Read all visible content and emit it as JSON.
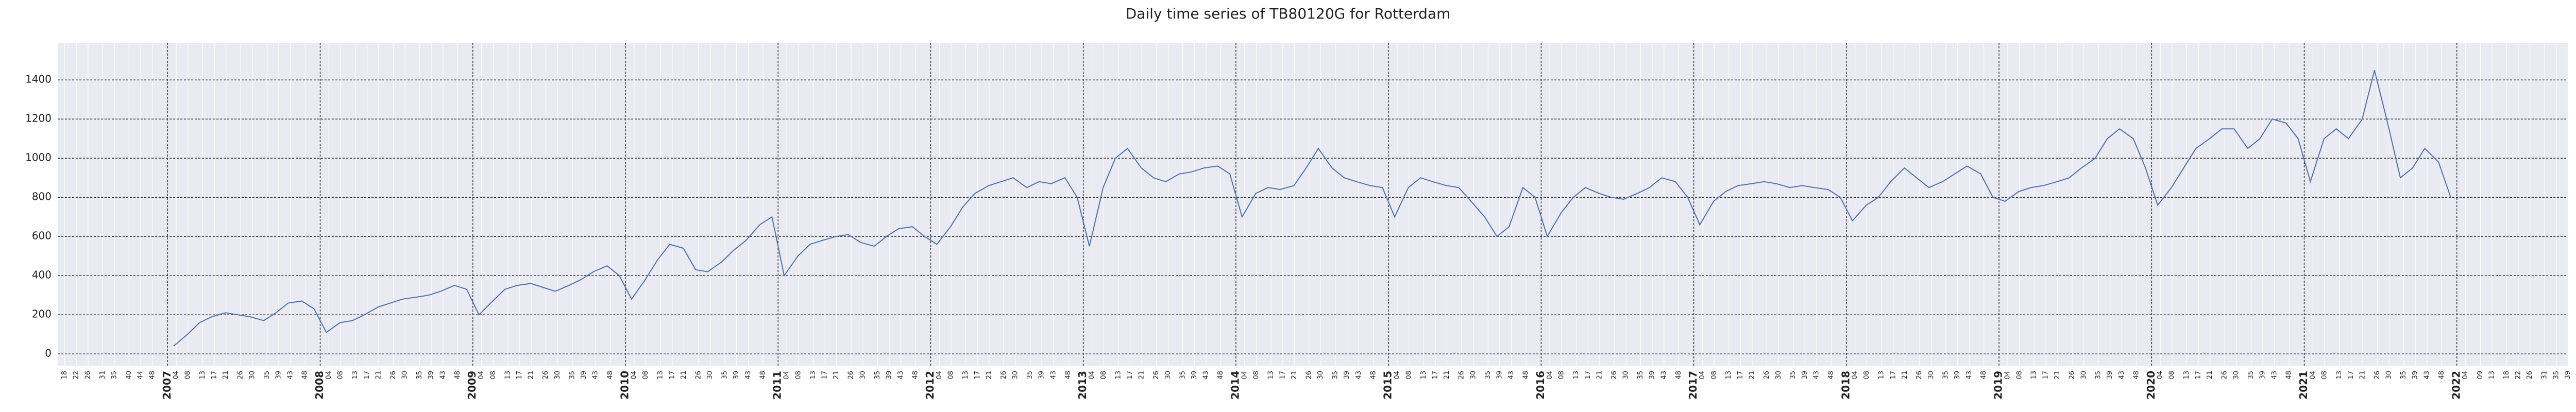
{
  "chart_data": {
    "type": "line",
    "title": "Daily time series of TB80120G for Rotterdam",
    "color": "#4c72b0",
    "xlim": [
      2006.28,
      2022.73
    ],
    "ylim": [
      -60,
      1590
    ],
    "xticks": [
      2007,
      2008,
      2009,
      2010,
      2011,
      2012,
      2013,
      2014,
      2015,
      2016,
      2017,
      2018,
      2019,
      2020,
      2021,
      2022
    ],
    "yticks": [
      0,
      200,
      400,
      600,
      800,
      1000,
      1200,
      1400
    ],
    "grid": true,
    "xminorticks": [
      {
        "value": 2006.326,
        "label": "18"
      },
      {
        "value": 2006.402,
        "label": "22"
      },
      {
        "value": 2006.479,
        "label": "26"
      },
      {
        "value": 2006.575,
        "label": "31"
      },
      {
        "value": 2006.652,
        "label": "35"
      },
      {
        "value": 2006.747,
        "label": "40"
      },
      {
        "value": 2006.824,
        "label": "44"
      },
      {
        "value": 2006.901,
        "label": "48"
      },
      {
        "value": 2007.057,
        "label": "04"
      },
      {
        "value": 2007.134,
        "label": "08"
      },
      {
        "value": 2007.23,
        "label": "13"
      },
      {
        "value": 2007.307,
        "label": "17"
      },
      {
        "value": 2007.383,
        "label": "21"
      },
      {
        "value": 2007.479,
        "label": "26"
      },
      {
        "value": 2007.556,
        "label": "30"
      },
      {
        "value": 2007.652,
        "label": "35"
      },
      {
        "value": 2007.728,
        "label": "39"
      },
      {
        "value": 2007.805,
        "label": "43"
      },
      {
        "value": 2007.901,
        "label": "48"
      },
      {
        "value": 2008.057,
        "label": "04"
      },
      {
        "value": 2008.134,
        "label": "08"
      },
      {
        "value": 2008.23,
        "label": "13"
      },
      {
        "value": 2008.307,
        "label": "17"
      },
      {
        "value": 2008.383,
        "label": "21"
      },
      {
        "value": 2008.479,
        "label": "26"
      },
      {
        "value": 2008.556,
        "label": "30"
      },
      {
        "value": 2008.652,
        "label": "35"
      },
      {
        "value": 2008.728,
        "label": "39"
      },
      {
        "value": 2008.805,
        "label": "43"
      },
      {
        "value": 2008.901,
        "label": "48"
      },
      {
        "value": 2009.057,
        "label": "04"
      },
      {
        "value": 2009.134,
        "label": "08"
      },
      {
        "value": 2009.23,
        "label": "13"
      },
      {
        "value": 2009.307,
        "label": "17"
      },
      {
        "value": 2009.383,
        "label": "21"
      },
      {
        "value": 2009.479,
        "label": "26"
      },
      {
        "value": 2009.556,
        "label": "30"
      },
      {
        "value": 2009.652,
        "label": "35"
      },
      {
        "value": 2009.728,
        "label": "39"
      },
      {
        "value": 2009.805,
        "label": "43"
      },
      {
        "value": 2009.901,
        "label": "48"
      },
      {
        "value": 2010.057,
        "label": "04"
      },
      {
        "value": 2010.134,
        "label": "08"
      },
      {
        "value": 2010.23,
        "label": "13"
      },
      {
        "value": 2010.307,
        "label": "17"
      },
      {
        "value": 2010.383,
        "label": "21"
      },
      {
        "value": 2010.479,
        "label": "26"
      },
      {
        "value": 2010.556,
        "label": "30"
      },
      {
        "value": 2010.652,
        "label": "35"
      },
      {
        "value": 2010.728,
        "label": "39"
      },
      {
        "value": 2010.805,
        "label": "43"
      },
      {
        "value": 2010.901,
        "label": "48"
      },
      {
        "value": 2011.057,
        "label": "04"
      },
      {
        "value": 2011.134,
        "label": "08"
      },
      {
        "value": 2011.23,
        "label": "13"
      },
      {
        "value": 2011.307,
        "label": "17"
      },
      {
        "value": 2011.383,
        "label": "21"
      },
      {
        "value": 2011.479,
        "label": "26"
      },
      {
        "value": 2011.556,
        "label": "30"
      },
      {
        "value": 2011.652,
        "label": "35"
      },
      {
        "value": 2011.728,
        "label": "39"
      },
      {
        "value": 2011.805,
        "label": "43"
      },
      {
        "value": 2011.901,
        "label": "48"
      },
      {
        "value": 2012.057,
        "label": "04"
      },
      {
        "value": 2012.134,
        "label": "08"
      },
      {
        "value": 2012.23,
        "label": "13"
      },
      {
        "value": 2012.307,
        "label": "17"
      },
      {
        "value": 2012.383,
        "label": "21"
      },
      {
        "value": 2012.479,
        "label": "26"
      },
      {
        "value": 2012.556,
        "label": "30"
      },
      {
        "value": 2012.652,
        "label": "35"
      },
      {
        "value": 2012.728,
        "label": "39"
      },
      {
        "value": 2012.805,
        "label": "43"
      },
      {
        "value": 2012.901,
        "label": "48"
      },
      {
        "value": 2013.057,
        "label": "04"
      },
      {
        "value": 2013.134,
        "label": "08"
      },
      {
        "value": 2013.23,
        "label": "13"
      },
      {
        "value": 2013.307,
        "label": "17"
      },
      {
        "value": 2013.383,
        "label": "21"
      },
      {
        "value": 2013.479,
        "label": "26"
      },
      {
        "value": 2013.556,
        "label": "30"
      },
      {
        "value": 2013.652,
        "label": "35"
      },
      {
        "value": 2013.728,
        "label": "39"
      },
      {
        "value": 2013.805,
        "label": "43"
      },
      {
        "value": 2013.901,
        "label": "48"
      },
      {
        "value": 2014.057,
        "label": "04"
      },
      {
        "value": 2014.134,
        "label": "08"
      },
      {
        "value": 2014.23,
        "label": "13"
      },
      {
        "value": 2014.307,
        "label": "17"
      },
      {
        "value": 2014.383,
        "label": "21"
      },
      {
        "value": 2014.479,
        "label": "26"
      },
      {
        "value": 2014.556,
        "label": "30"
      },
      {
        "value": 2014.652,
        "label": "35"
      },
      {
        "value": 2014.728,
        "label": "39"
      },
      {
        "value": 2014.805,
        "label": "43"
      },
      {
        "value": 2014.901,
        "label": "48"
      },
      {
        "value": 2015.057,
        "label": "04"
      },
      {
        "value": 2015.134,
        "label": "08"
      },
      {
        "value": 2015.23,
        "label": "13"
      },
      {
        "value": 2015.307,
        "label": "17"
      },
      {
        "value": 2015.383,
        "label": "21"
      },
      {
        "value": 2015.479,
        "label": "26"
      },
      {
        "value": 2015.556,
        "label": "30"
      },
      {
        "value": 2015.652,
        "label": "35"
      },
      {
        "value": 2015.728,
        "label": "39"
      },
      {
        "value": 2015.805,
        "label": "43"
      },
      {
        "value": 2015.901,
        "label": "48"
      },
      {
        "value": 2016.057,
        "label": "04"
      },
      {
        "value": 2016.134,
        "label": "08"
      },
      {
        "value": 2016.23,
        "label": "13"
      },
      {
        "value": 2016.307,
        "label": "17"
      },
      {
        "value": 2016.383,
        "label": "21"
      },
      {
        "value": 2016.479,
        "label": "26"
      },
      {
        "value": 2016.556,
        "label": "30"
      },
      {
        "value": 2016.652,
        "label": "35"
      },
      {
        "value": 2016.728,
        "label": "39"
      },
      {
        "value": 2016.805,
        "label": "43"
      },
      {
        "value": 2016.901,
        "label": "48"
      },
      {
        "value": 2017.057,
        "label": "04"
      },
      {
        "value": 2017.134,
        "label": "08"
      },
      {
        "value": 2017.23,
        "label": "13"
      },
      {
        "value": 2017.307,
        "label": "17"
      },
      {
        "value": 2017.383,
        "label": "21"
      },
      {
        "value": 2017.479,
        "label": "26"
      },
      {
        "value": 2017.556,
        "label": "30"
      },
      {
        "value": 2017.652,
        "label": "35"
      },
      {
        "value": 2017.728,
        "label": "39"
      },
      {
        "value": 2017.805,
        "label": "43"
      },
      {
        "value": 2017.901,
        "label": "48"
      },
      {
        "value": 2018.057,
        "label": "04"
      },
      {
        "value": 2018.134,
        "label": "08"
      },
      {
        "value": 2018.23,
        "label": "13"
      },
      {
        "value": 2018.307,
        "label": "17"
      },
      {
        "value": 2018.383,
        "label": "21"
      },
      {
        "value": 2018.479,
        "label": "26"
      },
      {
        "value": 2018.556,
        "label": "30"
      },
      {
        "value": 2018.652,
        "label": "35"
      },
      {
        "value": 2018.728,
        "label": "39"
      },
      {
        "value": 2018.805,
        "label": "43"
      },
      {
        "value": 2018.901,
        "label": "48"
      },
      {
        "value": 2019.057,
        "label": "04"
      },
      {
        "value": 2019.134,
        "label": "08"
      },
      {
        "value": 2019.23,
        "label": "13"
      },
      {
        "value": 2019.307,
        "label": "17"
      },
      {
        "value": 2019.383,
        "label": "21"
      },
      {
        "value": 2019.479,
        "label": "26"
      },
      {
        "value": 2019.556,
        "label": "30"
      },
      {
        "value": 2019.652,
        "label": "35"
      },
      {
        "value": 2019.728,
        "label": "39"
      },
      {
        "value": 2019.805,
        "label": "43"
      },
      {
        "value": 2019.901,
        "label": "48"
      },
      {
        "value": 2020.057,
        "label": "04"
      },
      {
        "value": 2020.134,
        "label": "08"
      },
      {
        "value": 2020.23,
        "label": "13"
      },
      {
        "value": 2020.307,
        "label": "17"
      },
      {
        "value": 2020.383,
        "label": "21"
      },
      {
        "value": 2020.479,
        "label": "26"
      },
      {
        "value": 2020.556,
        "label": "30"
      },
      {
        "value": 2020.652,
        "label": "35"
      },
      {
        "value": 2020.728,
        "label": "39"
      },
      {
        "value": 2020.805,
        "label": "43"
      },
      {
        "value": 2020.901,
        "label": "48"
      },
      {
        "value": 2021.057,
        "label": "04"
      },
      {
        "value": 2021.134,
        "label": "08"
      },
      {
        "value": 2021.23,
        "label": "13"
      },
      {
        "value": 2021.307,
        "label": "17"
      },
      {
        "value": 2021.383,
        "label": "21"
      },
      {
        "value": 2021.479,
        "label": "26"
      },
      {
        "value": 2021.556,
        "label": "30"
      },
      {
        "value": 2021.652,
        "label": "35"
      },
      {
        "value": 2021.728,
        "label": "39"
      },
      {
        "value": 2021.805,
        "label": "43"
      },
      {
        "value": 2021.901,
        "label": "48"
      },
      {
        "value": 2022.057,
        "label": "04"
      },
      {
        "value": 2022.154,
        "label": "09"
      },
      {
        "value": 2022.23,
        "label": "13"
      },
      {
        "value": 2022.326,
        "label": "18"
      },
      {
        "value": 2022.402,
        "label": "22"
      },
      {
        "value": 2022.479,
        "label": "26"
      },
      {
        "value": 2022.575,
        "label": "31"
      },
      {
        "value": 2022.652,
        "label": "35"
      },
      {
        "value": 2022.728,
        "label": "39"
      }
    ],
    "x": [
      2007.04,
      2007.13,
      2007.21,
      2007.29,
      2007.38,
      2007.46,
      2007.54,
      2007.63,
      2007.71,
      2007.79,
      2007.88,
      2007.96,
      2008.04,
      2008.13,
      2008.21,
      2008.29,
      2008.38,
      2008.46,
      2008.54,
      2008.63,
      2008.71,
      2008.79,
      2008.88,
      2008.96,
      2009.04,
      2009.13,
      2009.21,
      2009.29,
      2009.38,
      2009.46,
      2009.54,
      2009.63,
      2009.71,
      2009.79,
      2009.88,
      2009.96,
      2010.04,
      2010.13,
      2010.21,
      2010.29,
      2010.38,
      2010.46,
      2010.54,
      2010.63,
      2010.71,
      2010.79,
      2010.88,
      2010.96,
      2011.04,
      2011.13,
      2011.21,
      2011.29,
      2011.38,
      2011.46,
      2011.54,
      2011.63,
      2011.71,
      2011.79,
      2011.88,
      2011.96,
      2012.04,
      2012.13,
      2012.21,
      2012.29,
      2012.38,
      2012.46,
      2012.54,
      2012.63,
      2012.71,
      2012.79,
      2012.88,
      2012.96,
      2013.04,
      2013.13,
      2013.21,
      2013.29,
      2013.38,
      2013.46,
      2013.54,
      2013.63,
      2013.71,
      2013.79,
      2013.88,
      2013.96,
      2014.04,
      2014.13,
      2014.21,
      2014.29,
      2014.38,
      2014.46,
      2014.54,
      2014.63,
      2014.71,
      2014.79,
      2014.88,
      2014.96,
      2015.04,
      2015.13,
      2015.21,
      2015.29,
      2015.38,
      2015.46,
      2015.54,
      2015.63,
      2015.71,
      2015.79,
      2015.88,
      2015.96,
      2016.04,
      2016.13,
      2016.21,
      2016.29,
      2016.38,
      2016.46,
      2016.54,
      2016.63,
      2016.71,
      2016.79,
      2016.88,
      2016.96,
      2017.04,
      2017.13,
      2017.21,
      2017.29,
      2017.38,
      2017.46,
      2017.54,
      2017.63,
      2017.71,
      2017.79,
      2017.88,
      2017.96,
      2018.04,
      2018.13,
      2018.21,
      2018.29,
      2018.38,
      2018.46,
      2018.54,
      2018.63,
      2018.71,
      2018.79,
      2018.88,
      2018.96,
      2019.04,
      2019.13,
      2019.21,
      2019.29,
      2019.38,
      2019.46,
      2019.54,
      2019.63,
      2019.71,
      2019.79,
      2019.88,
      2019.96,
      2020.04,
      2020.13,
      2020.21,
      2020.29,
      2020.38,
      2020.46,
      2020.54,
      2020.63,
      2020.71,
      2020.79,
      2020.88,
      2020.96,
      2021.04,
      2021.13,
      2021.21,
      2021.29,
      2021.38,
      2021.46,
      2021.54,
      2021.63,
      2021.71,
      2021.79,
      2021.88,
      2021.96
    ],
    "values": [
      40,
      100,
      160,
      190,
      210,
      200,
      190,
      170,
      210,
      260,
      270,
      230,
      110,
      160,
      170,
      200,
      240,
      260,
      280,
      290,
      300,
      320,
      350,
      330,
      200,
      270,
      330,
      350,
      360,
      340,
      320,
      350,
      380,
      420,
      450,
      400,
      280,
      380,
      480,
      560,
      540,
      430,
      420,
      470,
      530,
      580,
      660,
      700,
      400,
      500,
      560,
      580,
      600,
      610,
      570,
      550,
      600,
      640,
      650,
      600,
      560,
      650,
      750,
      820,
      860,
      880,
      900,
      850,
      880,
      870,
      900,
      800,
      550,
      850,
      1000,
      1050,
      950,
      900,
      880,
      920,
      930,
      950,
      960,
      920,
      700,
      820,
      850,
      840,
      860,
      950,
      1050,
      950,
      900,
      880,
      860,
      850,
      700,
      850,
      900,
      880,
      860,
      850,
      780,
      700,
      600,
      650,
      850,
      800,
      600,
      720,
      800,
      850,
      820,
      800,
      790,
      820,
      850,
      900,
      880,
      800,
      660,
      780,
      830,
      860,
      870,
      880,
      870,
      850,
      860,
      850,
      840,
      800,
      680,
      760,
      800,
      880,
      950,
      900,
      850,
      880,
      920,
      960,
      920,
      800,
      780,
      830,
      850,
      860,
      880,
      900,
      950,
      1000,
      1100,
      1150,
      1100,
      950,
      760,
      850,
      950,
      1050,
      1100,
      1150,
      1150,
      1050,
      1100,
      1200,
      1180,
      1100,
      880,
      1100,
      1150,
      1100,
      1200,
      1450,
      1200,
      900,
      950,
      1050,
      980,
      800
    ]
  }
}
